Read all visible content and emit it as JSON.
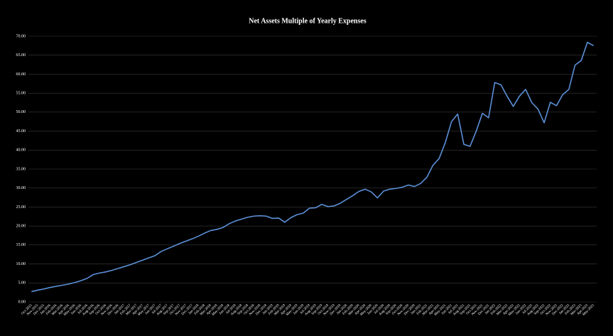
{
  "chart_data": {
    "type": "line",
    "title": "Net Assets Multiple of Yearly Expenses",
    "categories": [
      "Oct-2015",
      "Nov-2015",
      "Dec-2015",
      "Jan-2016",
      "Feb-2016",
      "Mar-2016",
      "Apr-2016",
      "May-2016",
      "Jun-2016",
      "Jul-2016",
      "Aug-2016",
      "Sep-2016",
      "Oct-2016",
      "Nov-2016",
      "Dec-2016",
      "Jan-2017",
      "Feb-2017",
      "Mar-2017",
      "Apr-2017",
      "May-2017",
      "Jun-2017",
      "Jul-2017",
      "Aug-2017",
      "Sep-2017",
      "Oct-2017",
      "Nov-2017",
      "Dec-2017",
      "Jan-2018",
      "Feb-2018",
      "Mar-2018",
      "Apr-2018",
      "May-2018",
      "Jun-2018",
      "Jul-2018",
      "Aug-2018",
      "Sep-2018",
      "Oct-2018",
      "Nov-2018",
      "Dec-2018",
      "Jan-2019",
      "Feb-2019",
      "Mar-2019",
      "Apr-2019",
      "May-2019",
      "Jun-2019",
      "Jul-2019",
      "Aug-2019",
      "Sep-2019",
      "Oct-2019",
      "Nov-2019",
      "Dec-2019",
      "Jan-2020",
      "Feb-2020",
      "Mar-2020",
      "Apr-2020",
      "May-2020",
      "Jun-2020",
      "Jul-2020",
      "Aug-2020",
      "Sep-2020",
      "Oct-2020",
      "Nov-2020",
      "Dec-2020",
      "Jan-2021",
      "Feb-2021",
      "Mar-2021",
      "Apr-2021",
      "May-2021",
      "Jun-2021",
      "Jul-2021",
      "Aug-2021",
      "Sep-2021",
      "Oct-2021",
      "Nov-2021",
      "Dec-2021",
      "Jan-2022",
      "Feb-2022",
      "Mar-2022",
      "Apr-2022",
      "May-2022",
      "Jun-2022",
      "Jul-2022",
      "Aug-2022",
      "Sep-2022",
      "Oct-2022",
      "Nov-2022",
      "Dec-2022",
      "Jan-2023",
      "Feb-2023",
      "Mar-2023",
      "Apr-2023",
      "May-2023"
    ],
    "series": [
      {
        "color": "#5b8fd6",
        "values": [
          2.7,
          3.1,
          3.4,
          3.8,
          4.1,
          4.4,
          4.7,
          5.1,
          5.6,
          6.2,
          7.2,
          7.6,
          7.9,
          8.3,
          8.8,
          9.3,
          9.8,
          10.4,
          11.0,
          11.6,
          12.2,
          13.3,
          14.0,
          14.7,
          15.4,
          16.0,
          16.6,
          17.3,
          18.1,
          18.8,
          19.1,
          19.6,
          20.6,
          21.3,
          21.8,
          22.3,
          22.6,
          22.7,
          22.6,
          22.0,
          22.1,
          21.0,
          22.2,
          23.0,
          23.4,
          24.7,
          24.8,
          25.7,
          25.1,
          25.3,
          26.0,
          27.0,
          28.0,
          29.1,
          29.7,
          29.0,
          27.4,
          29.2,
          29.7,
          29.9,
          30.2,
          30.8,
          30.4,
          31.2,
          32.8,
          36.0,
          37.8,
          42.0,
          47.5,
          49.5,
          41.5,
          41.0,
          45.0,
          49.7,
          48.5,
          57.8,
          57.2,
          54.2,
          51.5,
          54.2,
          56.0,
          52.5,
          50.8,
          47.2,
          52.6,
          51.7,
          54.6,
          56.0,
          62.4,
          63.6,
          68.4,
          67.5
        ]
      }
    ],
    "ylim": [
      0,
      70
    ],
    "yticks": [
      {
        "value": 0,
        "label": "0.00"
      },
      {
        "value": 5,
        "label": "5.00"
      },
      {
        "value": 10,
        "label": "10.00"
      },
      {
        "value": 15,
        "label": "15.00"
      },
      {
        "value": 20,
        "label": "20.00"
      },
      {
        "value": 25,
        "label": "25.00"
      },
      {
        "value": 30,
        "label": "30.00"
      },
      {
        "value": 35,
        "label": "35.00"
      },
      {
        "value": 40,
        "label": "40.00"
      },
      {
        "value": 45,
        "label": "45.00"
      },
      {
        "value": 50,
        "label": "50.00"
      },
      {
        "value": 55,
        "label": "55.00"
      },
      {
        "value": 60,
        "label": "60.00"
      },
      {
        "value": 65,
        "label": "65.00"
      },
      {
        "value": 70,
        "label": "70.00"
      }
    ],
    "grid": true
  }
}
